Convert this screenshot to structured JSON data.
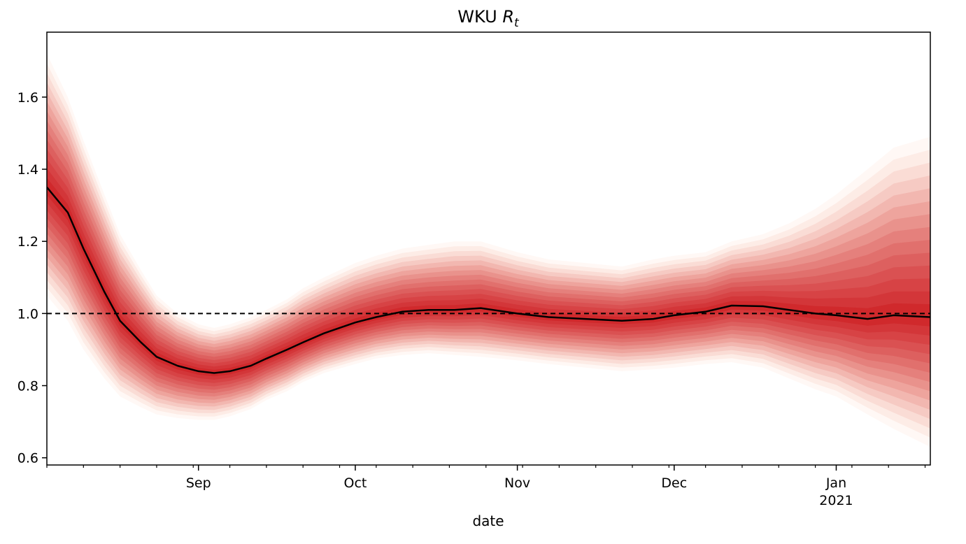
{
  "chart_data": {
    "type": "area",
    "title": "WKU",
    "title_math": "R",
    "title_math_sub": "t",
    "xlabel": "date",
    "ylabel": "",
    "x_range": [
      "2020-08-03",
      "2021-01-19"
    ],
    "ylim": [
      0.58,
      1.78
    ],
    "yticks": [
      0.6,
      0.8,
      1.0,
      1.2,
      1.4,
      1.6
    ],
    "ytick_labels": [
      "0.6",
      "0.8",
      "1.0",
      "1.2",
      "1.4",
      "1.6"
    ],
    "xticks_major": [
      {
        "date": "2020-09-01",
        "label": "Sep",
        "sublabel": ""
      },
      {
        "date": "2020-10-01",
        "label": "Oct",
        "sublabel": ""
      },
      {
        "date": "2020-11-01",
        "label": "Nov",
        "sublabel": ""
      },
      {
        "date": "2020-12-01",
        "label": "Dec",
        "sublabel": ""
      },
      {
        "date": "2021-01-01",
        "label": "Jan",
        "sublabel": "2021"
      }
    ],
    "reference_line": {
      "y": 1.0,
      "style": "dashed",
      "color": "#000000"
    },
    "grid": false,
    "colors": {
      "median": "#000000",
      "band": "#cb181d",
      "band_light": "#fee0d2"
    },
    "x": [
      "2020-08-03",
      "2020-08-07",
      "2020-08-10",
      "2020-08-14",
      "2020-08-17",
      "2020-08-21",
      "2020-08-24",
      "2020-08-28",
      "2020-09-01",
      "2020-09-04",
      "2020-09-07",
      "2020-09-11",
      "2020-09-14",
      "2020-09-18",
      "2020-09-21",
      "2020-09-25",
      "2020-10-01",
      "2020-10-05",
      "2020-10-10",
      "2020-10-15",
      "2020-10-20",
      "2020-10-25",
      "2020-11-01",
      "2020-11-07",
      "2020-11-14",
      "2020-11-21",
      "2020-11-27",
      "2020-12-01",
      "2020-12-07",
      "2020-12-12",
      "2020-12-18",
      "2020-12-23",
      "2020-12-28",
      "2021-01-01",
      "2021-01-07",
      "2021-01-12",
      "2021-01-19"
    ],
    "series": [
      {
        "name": "",
        "role": "median",
        "values": [
          1.35,
          1.28,
          1.18,
          1.06,
          0.98,
          0.92,
          0.88,
          0.855,
          0.84,
          0.835,
          0.84,
          0.855,
          0.875,
          0.9,
          0.92,
          0.945,
          0.975,
          0.99,
          1.005,
          1.01,
          1.01,
          1.015,
          1.0,
          0.99,
          0.985,
          0.98,
          0.985,
          0.995,
          1.005,
          1.022,
          1.02,
          1.01,
          1.0,
          0.995,
          0.985,
          0.995,
          0.99
        ]
      },
      {
        "name": "",
        "role": "lower_bound",
        "values": [
          1.05,
          0.98,
          0.9,
          0.82,
          0.77,
          0.74,
          0.72,
          0.71,
          0.705,
          0.705,
          0.715,
          0.735,
          0.76,
          0.785,
          0.81,
          0.835,
          0.86,
          0.875,
          0.885,
          0.89,
          0.885,
          0.88,
          0.87,
          0.86,
          0.85,
          0.84,
          0.845,
          0.85,
          0.86,
          0.865,
          0.85,
          0.82,
          0.79,
          0.77,
          0.72,
          0.68,
          0.63
        ]
      },
      {
        "name": "",
        "role": "upper_bound",
        "values": [
          1.72,
          1.6,
          1.48,
          1.33,
          1.22,
          1.12,
          1.05,
          1.0,
          0.97,
          0.96,
          0.97,
          0.99,
          1.01,
          1.04,
          1.07,
          1.1,
          1.14,
          1.16,
          1.18,
          1.19,
          1.2,
          1.2,
          1.17,
          1.15,
          1.14,
          1.13,
          1.15,
          1.16,
          1.17,
          1.2,
          1.22,
          1.25,
          1.29,
          1.33,
          1.4,
          1.46,
          1.49
        ]
      }
    ]
  }
}
